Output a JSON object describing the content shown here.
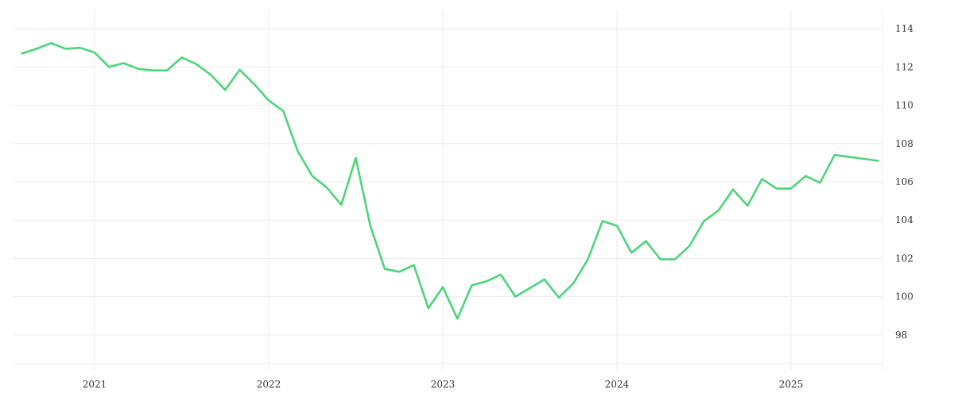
{
  "chart_data": {
    "type": "line",
    "title": "",
    "xlabel": "",
    "ylabel": "",
    "y_axis_position": "right",
    "ylim": [
      96.5,
      115
    ],
    "y_ticks": [
      "98",
      "100",
      "102",
      "104",
      "106",
      "108",
      "110",
      "112",
      "114"
    ],
    "x_ticks": [
      "2021",
      "2022",
      "2023",
      "2024",
      "2025"
    ],
    "grid": true,
    "legend": "none",
    "line_color": "#4cd47a",
    "grid_color": "#ececec",
    "series": [
      {
        "values": [
          [
            "2020-08-01",
            112.7
          ],
          [
            "2020-09-01",
            112.95
          ],
          [
            "2020-10-01",
            113.25
          ],
          [
            "2020-11-01",
            112.95
          ],
          [
            "2020-12-01",
            113.0
          ],
          [
            "2021-01-01",
            112.75
          ],
          [
            "2021-02-01",
            112.0
          ],
          [
            "2021-03-01",
            112.2
          ],
          [
            "2021-04-01",
            111.9
          ],
          [
            "2021-05-01",
            111.82
          ],
          [
            "2021-06-01",
            111.82
          ],
          [
            "2021-07-01",
            112.5
          ],
          [
            "2021-08-01",
            112.15
          ],
          [
            "2021-09-01",
            111.6
          ],
          [
            "2021-10-01",
            110.8
          ],
          [
            "2021-11-01",
            111.85
          ],
          [
            "2021-12-01",
            111.1
          ],
          [
            "2022-01-01",
            110.25
          ],
          [
            "2022-02-01",
            109.7
          ],
          [
            "2022-03-01",
            107.6
          ],
          [
            "2022-04-01",
            106.3
          ],
          [
            "2022-05-01",
            105.7
          ],
          [
            "2022-06-01",
            104.8
          ],
          [
            "2022-07-01",
            107.25
          ],
          [
            "2022-08-01",
            103.7
          ],
          [
            "2022-09-01",
            101.45
          ],
          [
            "2022-10-01",
            101.3
          ],
          [
            "2022-11-01",
            101.65
          ],
          [
            "2022-12-01",
            99.4
          ],
          [
            "2023-01-01",
            100.5
          ],
          [
            "2023-02-01",
            98.85
          ],
          [
            "2023-03-01",
            100.6
          ],
          [
            "2023-04-01",
            100.8
          ],
          [
            "2023-05-01",
            101.15
          ],
          [
            "2023-06-01",
            100.0
          ],
          [
            "2023-07-01",
            100.45
          ],
          [
            "2023-08-01",
            100.9
          ],
          [
            "2023-09-01",
            99.95
          ],
          [
            "2023-10-01",
            100.7
          ],
          [
            "2023-11-01",
            101.95
          ],
          [
            "2023-12-01",
            103.95
          ],
          [
            "2024-01-01",
            103.7
          ],
          [
            "2024-02-01",
            102.3
          ],
          [
            "2024-03-01",
            102.9
          ],
          [
            "2024-04-01",
            101.95
          ],
          [
            "2024-05-01",
            101.95
          ],
          [
            "2024-06-01",
            102.65
          ],
          [
            "2024-07-01",
            103.95
          ],
          [
            "2024-08-01",
            104.5
          ],
          [
            "2024-09-01",
            105.6
          ],
          [
            "2024-10-01",
            104.75
          ],
          [
            "2024-11-01",
            106.15
          ],
          [
            "2024-12-01",
            105.65
          ],
          [
            "2025-01-01",
            105.65
          ],
          [
            "2025-02-01",
            106.3
          ],
          [
            "2025-03-01",
            105.95
          ],
          [
            "2025-04-01",
            107.4
          ],
          [
            "2025-05-01",
            107.3
          ],
          [
            "2025-06-01",
            107.2
          ],
          [
            "2025-07-01",
            107.1
          ]
        ]
      }
    ]
  }
}
